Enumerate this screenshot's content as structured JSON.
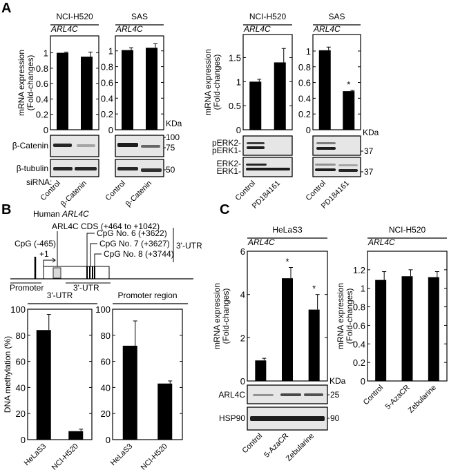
{
  "panels": {
    "a": "A",
    "b": "B",
    "c": "C"
  },
  "common": {
    "gene": "ARL4C",
    "kda": "KDa",
    "mrna_ylabel_1": "mRNA expression",
    "mrna_ylabel_2": "(Fold-changes)",
    "sirna": "siRNA:"
  },
  "blots": {
    "a_left": {
      "rows": [
        "β-Catenin",
        "β-tubulin"
      ],
      "markers": [
        "100",
        "75",
        "50"
      ]
    },
    "a_right": {
      "rows": [
        "pERK2-",
        "pERK1-",
        "ERK2-",
        "ERK1-"
      ],
      "markers": [
        "37",
        "37"
      ]
    },
    "c": {
      "rows": [
        "ARL4C",
        "HSP90"
      ],
      "markers": [
        "25",
        "90"
      ]
    }
  },
  "diagram": {
    "title_prefix": "Human ",
    "title_gene": "ARL4C",
    "cds": "ARL4C CDS (+464 to +1042)",
    "cpg_promoter": "CpG (-465)",
    "tss": "+1",
    "cpg6": "CpG No. 6 (+3622)",
    "cpg7": "CpG No. 7 (+3627)",
    "cpg8": "CpG No. 8 (+3744)",
    "utr_bracket": "3'-UTR",
    "promoter": "Promoter",
    "utr": "3'-UTR",
    "cds_color": "#d9d9d9"
  },
  "chart_data": [
    {
      "id": "a1",
      "type": "bar",
      "title": "NCI-H520",
      "subtitle": "ARL4C",
      "categories": [
        "Control",
        "β-Catenin"
      ],
      "values": [
        1.0,
        0.95
      ],
      "errors": [
        0.01,
        0.06
      ],
      "significant": [
        false,
        false
      ],
      "yticks": [
        0,
        0.2,
        0.4,
        0.6,
        0.8,
        1
      ],
      "ylim": [
        0,
        1.22
      ],
      "ylabel": "mRNA expression (Fold-changes)"
    },
    {
      "id": "a2",
      "type": "bar",
      "title": "SAS",
      "subtitle": "ARL4C",
      "categories": [
        "Control",
        "β-Catenin"
      ],
      "values": [
        1.01,
        1.04
      ],
      "errors": [
        0.03,
        0.05
      ],
      "significant": [
        false,
        false
      ],
      "yticks": [
        0,
        0.2,
        0.4,
        0.6,
        0.8,
        1
      ],
      "ylim": [
        0,
        1.19
      ]
    },
    {
      "id": "a3",
      "type": "bar",
      "title": "NCI-H520",
      "subtitle": "ARL4C",
      "categories": [
        "Control",
        "PD184161"
      ],
      "values": [
        1.0,
        1.4
      ],
      "errors": [
        0.05,
        0.29
      ],
      "significant": [
        false,
        false
      ],
      "yticks": [
        0,
        0.5,
        1,
        1.5
      ],
      "ylim": [
        0,
        1.98
      ],
      "ylabel": "mRNA expression (Fold-changes)"
    },
    {
      "id": "a4",
      "type": "bar",
      "title": "SAS",
      "subtitle": "ARL4C",
      "categories": [
        "Control",
        "PD184161"
      ],
      "values": [
        1.01,
        0.49
      ],
      "errors": [
        0.04,
        0.01
      ],
      "significant": [
        false,
        true
      ],
      "yticks": [
        0,
        0.2,
        0.4,
        0.6,
        0.8,
        1
      ],
      "ylim": [
        0,
        1.21
      ]
    },
    {
      "id": "b1",
      "type": "bar",
      "title": "3'-UTR",
      "subtitle": "",
      "categories": [
        "HeLaS3",
        "NCI-H520"
      ],
      "values": [
        84,
        6.5
      ],
      "errors": [
        12,
        1.5
      ],
      "significant": [
        false,
        false
      ],
      "yticks": [
        0,
        20,
        40,
        60,
        80,
        100
      ],
      "ylim": [
        0,
        100
      ],
      "ylabel": "DNA methylation (%)"
    },
    {
      "id": "b2",
      "type": "bar",
      "title": "Promoter region",
      "subtitle": "",
      "categories": [
        "HeLaS3",
        "NCI-H520"
      ],
      "values": [
        72,
        43
      ],
      "errors": [
        19,
        2
      ],
      "significant": [
        false,
        false
      ],
      "yticks": [
        0,
        20,
        40,
        60,
        80,
        100
      ],
      "ylim": [
        0,
        100
      ]
    },
    {
      "id": "c1",
      "type": "bar",
      "title": "HeLaS3",
      "subtitle": "ARL4C",
      "categories": [
        "Control",
        "5-AzaCR",
        "Zebularine"
      ],
      "values": [
        0.95,
        4.75,
        3.3
      ],
      "errors": [
        0.1,
        0.5,
        0.7
      ],
      "significant": [
        false,
        true,
        true
      ],
      "yticks": [
        0,
        2,
        4,
        6
      ],
      "ylim": [
        0,
        6
      ],
      "ylabel": "mRNA expression (Fold-changes)"
    },
    {
      "id": "c2",
      "type": "bar",
      "title": "NCI-H520",
      "subtitle": "ARL4C",
      "categories": [
        "Control",
        "5-AzaCR",
        "Zebularine"
      ],
      "values": [
        1.09,
        1.13,
        1.12
      ],
      "errors": [
        0.09,
        0.07,
        0.06
      ],
      "significant": [
        false,
        false,
        false
      ],
      "yticks": [
        0,
        0.2,
        0.4,
        0.6,
        0.8,
        1,
        1.2
      ],
      "ylim": [
        0,
        1.4
      ],
      "ylabel": "mRNA expression (Fold-changes)"
    }
  ],
  "significance_mark": "*"
}
